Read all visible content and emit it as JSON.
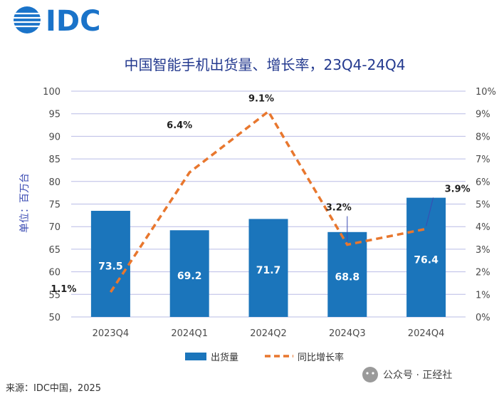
{
  "logo_text": "IDC",
  "source": "来源：IDC中国，2025",
  "watermark": "公众号 · 正经社",
  "colors": {
    "bar": "#1b75bb",
    "line": "#e8772e",
    "grid": "#b9bce6",
    "title": "#243a8f",
    "logo": "#1a73c9"
  },
  "chart_data": {
    "type": "bar",
    "title": "中国智能手机出货量、增长率，23Q4-24Q4",
    "ylabel": "单位：百万台",
    "categories": [
      "2023Q4",
      "2024Q1",
      "2024Q2",
      "2024Q3",
      "2024Q4"
    ],
    "ylim": [
      50,
      100
    ],
    "y_ticks": [
      "100",
      "95",
      "90",
      "85",
      "80",
      "75",
      "70",
      "65",
      "60",
      "55",
      "50"
    ],
    "y2lim": [
      0,
      10
    ],
    "y2_ticks": [
      "10%",
      "9%",
      "8%",
      "7%",
      "6%",
      "5%",
      "4%",
      "3%",
      "2%",
      "1%",
      "0%"
    ],
    "series": [
      {
        "name": "出货量",
        "type": "bar",
        "axis": "left",
        "values": [
          73.5,
          69.2,
          71.7,
          68.8,
          76.4
        ],
        "labels": [
          "73.5",
          "69.2",
          "71.7",
          "68.8",
          "76.4"
        ]
      },
      {
        "name": "同比增长率",
        "type": "line",
        "axis": "right",
        "style": "dashed",
        "values": [
          1.1,
          6.4,
          9.1,
          3.2,
          3.9
        ],
        "labels": [
          "1.1%",
          "6.4%",
          "9.1%",
          "3.2%",
          "3.9%"
        ]
      }
    ],
    "grid": true,
    "legend": "bottom"
  }
}
